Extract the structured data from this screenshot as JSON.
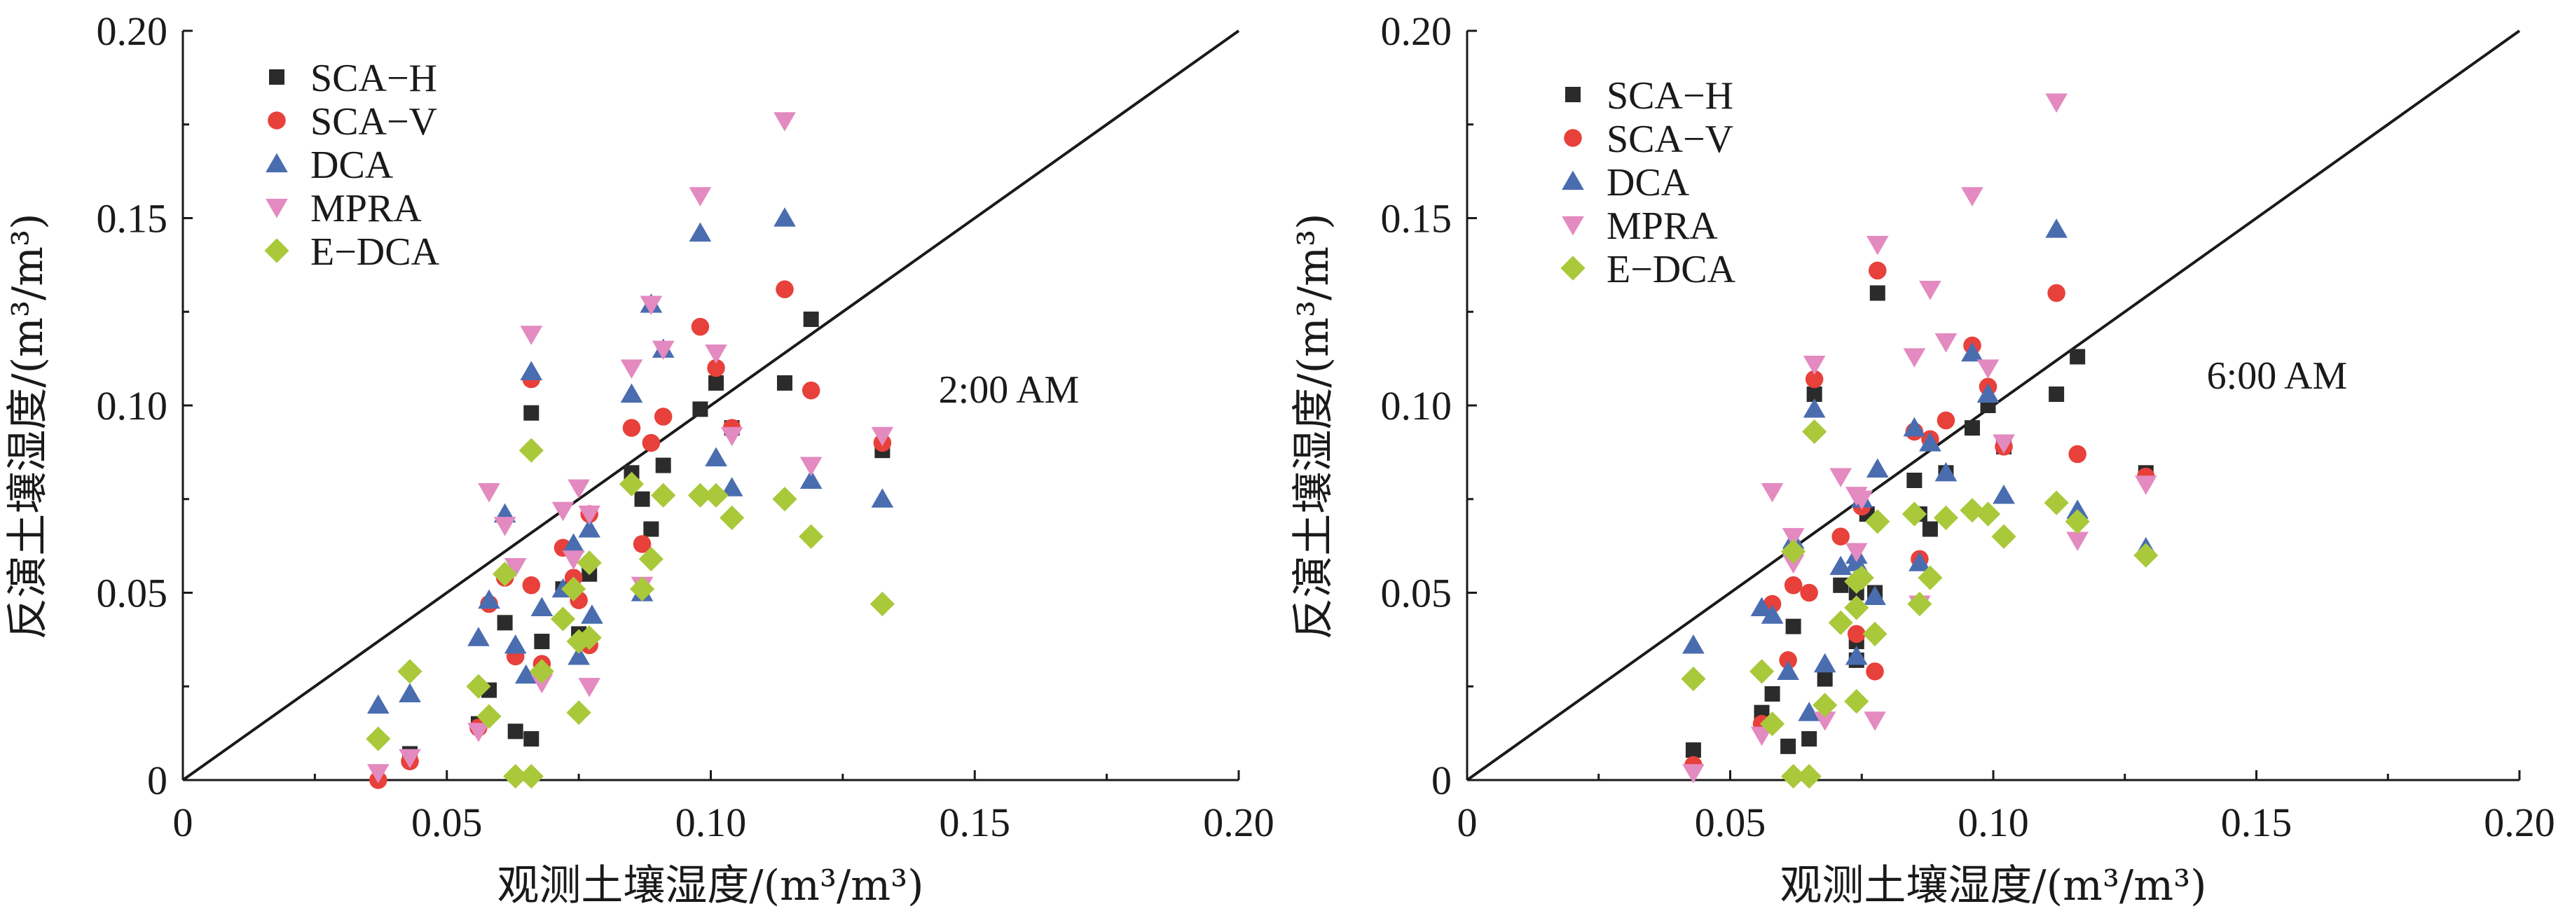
{
  "chart_data": [
    {
      "type": "scatter",
      "title": "",
      "annotation": "2:00 AM",
      "xlabel": "观测土壤湿度/(m³/m³)",
      "ylabel": "反演土壤湿度/(m³/m³)",
      "xlim": [
        0,
        0.2
      ],
      "ylim": [
        0,
        0.2
      ],
      "xticks": [
        "0",
        "0.05",
        "0.10",
        "0.15",
        "0.20"
      ],
      "yticks": [
        "0",
        "0.05",
        "0.10",
        "0.15",
        "0.20"
      ],
      "grid": false,
      "legend_position": "top-left",
      "reference_line": "1:1",
      "series": [
        {
          "name": "SCA−H",
          "marker": "square",
          "color": "#2b2b2b",
          "points": [
            [
              0.043,
              0.007
            ],
            [
              0.056,
              0.015
            ],
            [
              0.058,
              0.024
            ],
            [
              0.061,
              0.042
            ],
            [
              0.063,
              0.013
            ],
            [
              0.066,
              0.011
            ],
            [
              0.066,
              0.098
            ],
            [
              0.068,
              0.037
            ],
            [
              0.072,
              0.051
            ],
            [
              0.075,
              0.039
            ],
            [
              0.077,
              0.055
            ],
            [
              0.085,
              0.082
            ],
            [
              0.087,
              0.075
            ],
            [
              0.0887,
              0.067
            ],
            [
              0.091,
              0.084
            ],
            [
              0.098,
              0.099
            ],
            [
              0.101,
              0.106
            ],
            [
              0.104,
              0.094
            ],
            [
              0.114,
              0.106
            ],
            [
              0.119,
              0.123
            ],
            [
              0.1325,
              0.088
            ]
          ]
        },
        {
          "name": "SCA−V",
          "marker": "circle",
          "color": "#e8403a",
          "points": [
            [
              0.037,
              0.0
            ],
            [
              0.043,
              0.005
            ],
            [
              0.056,
              0.014
            ],
            [
              0.058,
              0.047
            ],
            [
              0.061,
              0.054
            ],
            [
              0.063,
              0.033
            ],
            [
              0.066,
              0.052
            ],
            [
              0.066,
              0.107
            ],
            [
              0.068,
              0.031
            ],
            [
              0.072,
              0.062
            ],
            [
              0.074,
              0.054
            ],
            [
              0.075,
              0.048
            ],
            [
              0.077,
              0.036
            ],
            [
              0.077,
              0.071
            ],
            [
              0.085,
              0.094
            ],
            [
              0.087,
              0.063
            ],
            [
              0.0887,
              0.09
            ],
            [
              0.091,
              0.097
            ],
            [
              0.098,
              0.121
            ],
            [
              0.101,
              0.11
            ],
            [
              0.104,
              0.094
            ],
            [
              0.114,
              0.131
            ],
            [
              0.119,
              0.104
            ],
            [
              0.1325,
              0.09
            ]
          ]
        },
        {
          "name": "DCA",
          "marker": "triangle-up",
          "color": "#4a6db0",
          "points": [
            [
              0.037,
              0.02
            ],
            [
              0.043,
              0.023
            ],
            [
              0.056,
              0.038
            ],
            [
              0.058,
              0.048
            ],
            [
              0.061,
              0.071
            ],
            [
              0.063,
              0.036
            ],
            [
              0.065,
              0.028
            ],
            [
              0.066,
              0.109
            ],
            [
              0.068,
              0.046
            ],
            [
              0.072,
              0.051
            ],
            [
              0.074,
              0.063
            ],
            [
              0.075,
              0.033
            ],
            [
              0.077,
              0.067
            ],
            [
              0.0775,
              0.044
            ],
            [
              0.085,
              0.103
            ],
            [
              0.087,
              0.05
            ],
            [
              0.0887,
              0.127
            ],
            [
              0.091,
              0.115
            ],
            [
              0.098,
              0.146
            ],
            [
              0.101,
              0.086
            ],
            [
              0.104,
              0.078
            ],
            [
              0.114,
              0.15
            ],
            [
              0.119,
              0.08
            ],
            [
              0.1325,
              0.075
            ]
          ]
        },
        {
          "name": "MPRA",
          "marker": "triangle-down",
          "color": "#e38ac0",
          "points": [
            [
              0.037,
              0.002
            ],
            [
              0.043,
              0.006
            ],
            [
              0.056,
              0.013
            ],
            [
              0.058,
              0.077
            ],
            [
              0.061,
              0.068
            ],
            [
              0.063,
              0.057
            ],
            [
              0.066,
              0.119
            ],
            [
              0.068,
              0.026
            ],
            [
              0.072,
              0.072
            ],
            [
              0.074,
              0.059
            ],
            [
              0.075,
              0.078
            ],
            [
              0.077,
              0.025
            ],
            [
              0.077,
              0.071
            ],
            [
              0.085,
              0.11
            ],
            [
              0.087,
              0.052
            ],
            [
              0.0887,
              0.127
            ],
            [
              0.091,
              0.115
            ],
            [
              0.098,
              0.156
            ],
            [
              0.101,
              0.114
            ],
            [
              0.104,
              0.092
            ],
            [
              0.114,
              0.176
            ],
            [
              0.119,
              0.084
            ],
            [
              0.1325,
              0.092
            ]
          ]
        },
        {
          "name": "E−DCA",
          "marker": "diamond",
          "color": "#a9c93a",
          "points": [
            [
              0.037,
              0.011
            ],
            [
              0.043,
              0.029
            ],
            [
              0.056,
              0.025
            ],
            [
              0.058,
              0.017
            ],
            [
              0.061,
              0.055
            ],
            [
              0.063,
              0.001
            ],
            [
              0.066,
              0.001
            ],
            [
              0.066,
              0.088
            ],
            [
              0.068,
              0.029
            ],
            [
              0.072,
              0.043
            ],
            [
              0.074,
              0.051
            ],
            [
              0.075,
              0.018
            ],
            [
              0.075,
              0.037
            ],
            [
              0.077,
              0.038
            ],
            [
              0.077,
              0.058
            ],
            [
              0.085,
              0.079
            ],
            [
              0.087,
              0.051
            ],
            [
              0.0887,
              0.059
            ],
            [
              0.091,
              0.076
            ],
            [
              0.098,
              0.076
            ],
            [
              0.101,
              0.076
            ],
            [
              0.104,
              0.07
            ],
            [
              0.114,
              0.075
            ],
            [
              0.119,
              0.065
            ],
            [
              0.1325,
              0.047
            ]
          ]
        }
      ]
    },
    {
      "type": "scatter",
      "title": "",
      "annotation": "6:00 AM",
      "xlabel": "观测土壤湿度/(m³/m³)",
      "ylabel": "反演土壤湿度/(m³/m³)",
      "xlim": [
        0,
        0.2
      ],
      "ylim": [
        0,
        0.2
      ],
      "xticks": [
        "0",
        "0.05",
        "0.10",
        "0.15",
        "0.20"
      ],
      "yticks": [
        "0",
        "0.05",
        "0.10",
        "0.15",
        "0.20"
      ],
      "grid": false,
      "legend_position": "top-left",
      "reference_line": "1:1",
      "series": [
        {
          "name": "SCA−H",
          "marker": "square",
          "color": "#2b2b2b",
          "points": [
            [
              0.043,
              0.008
            ],
            [
              0.056,
              0.018
            ],
            [
              0.058,
              0.023
            ],
            [
              0.061,
              0.009
            ],
            [
              0.062,
              0.041
            ],
            [
              0.065,
              0.011
            ],
            [
              0.066,
              0.103
            ],
            [
              0.068,
              0.027
            ],
            [
              0.071,
              0.052
            ],
            [
              0.074,
              0.032
            ],
            [
              0.074,
              0.037
            ],
            [
              0.074,
              0.05
            ],
            [
              0.076,
              0.071
            ],
            [
              0.0775,
              0.05
            ],
            [
              0.078,
              0.13
            ],
            [
              0.085,
              0.08
            ],
            [
              0.086,
              0.071
            ],
            [
              0.088,
              0.067
            ],
            [
              0.091,
              0.082
            ],
            [
              0.096,
              0.094
            ],
            [
              0.099,
              0.1
            ],
            [
              0.102,
              0.089
            ],
            [
              0.112,
              0.103
            ],
            [
              0.116,
              0.113
            ],
            [
              0.129,
              0.082
            ]
          ]
        },
        {
          "name": "SCA−V",
          "marker": "circle",
          "color": "#e8403a",
          "points": [
            [
              0.043,
              0.004
            ],
            [
              0.056,
              0.015
            ],
            [
              0.058,
              0.047
            ],
            [
              0.061,
              0.032
            ],
            [
              0.062,
              0.052
            ],
            [
              0.065,
              0.05
            ],
            [
              0.066,
              0.107
            ],
            [
              0.071,
              0.065
            ],
            [
              0.074,
              0.039
            ],
            [
              0.075,
              0.073
            ],
            [
              0.0775,
              0.029
            ],
            [
              0.078,
              0.136
            ],
            [
              0.085,
              0.093
            ],
            [
              0.086,
              0.059
            ],
            [
              0.088,
              0.091
            ],
            [
              0.091,
              0.096
            ],
            [
              0.096,
              0.116
            ],
            [
              0.099,
              0.105
            ],
            [
              0.102,
              0.089
            ],
            [
              0.112,
              0.13
            ],
            [
              0.116,
              0.087
            ],
            [
              0.129,
              0.081
            ]
          ]
        },
        {
          "name": "DCA",
          "marker": "triangle-up",
          "color": "#4a6db0",
          "points": [
            [
              0.043,
              0.036
            ],
            [
              0.056,
              0.046
            ],
            [
              0.058,
              0.044
            ],
            [
              0.061,
              0.029
            ],
            [
              0.062,
              0.064
            ],
            [
              0.065,
              0.018
            ],
            [
              0.066,
              0.099
            ],
            [
              0.068,
              0.031
            ],
            [
              0.071,
              0.057
            ],
            [
              0.074,
              0.033
            ],
            [
              0.074,
              0.058
            ],
            [
              0.074,
              0.06
            ],
            [
              0.075,
              0.075
            ],
            [
              0.0775,
              0.049
            ],
            [
              0.078,
              0.083
            ],
            [
              0.085,
              0.094
            ],
            [
              0.086,
              0.058
            ],
            [
              0.088,
              0.09
            ],
            [
              0.091,
              0.082
            ],
            [
              0.096,
              0.114
            ],
            [
              0.099,
              0.103
            ],
            [
              0.102,
              0.076
            ],
            [
              0.112,
              0.147
            ],
            [
              0.116,
              0.072
            ],
            [
              0.129,
              0.062
            ]
          ]
        },
        {
          "name": "MPRA",
          "marker": "triangle-down",
          "color": "#e38ac0",
          "points": [
            [
              0.043,
              0.002
            ],
            [
              0.056,
              0.012
            ],
            [
              0.058,
              0.077
            ],
            [
              0.062,
              0.058
            ],
            [
              0.062,
              0.065
            ],
            [
              0.066,
              0.111
            ],
            [
              0.068,
              0.016
            ],
            [
              0.071,
              0.081
            ],
            [
              0.074,
              0.061
            ],
            [
              0.074,
              0.076
            ],
            [
              0.075,
              0.075
            ],
            [
              0.0775,
              0.016
            ],
            [
              0.078,
              0.143
            ],
            [
              0.085,
              0.113
            ],
            [
              0.086,
              0.047
            ],
            [
              0.088,
              0.131
            ],
            [
              0.091,
              0.117
            ],
            [
              0.096,
              0.156
            ],
            [
              0.099,
              0.11
            ],
            [
              0.102,
              0.09
            ],
            [
              0.112,
              0.181
            ],
            [
              0.116,
              0.064
            ],
            [
              0.129,
              0.079
            ]
          ]
        },
        {
          "name": "E−DCA",
          "marker": "diamond",
          "color": "#a9c93a",
          "points": [
            [
              0.043,
              0.027
            ],
            [
              0.056,
              0.029
            ],
            [
              0.058,
              0.015
            ],
            [
              0.062,
              0.001
            ],
            [
              0.062,
              0.061
            ],
            [
              0.065,
              0.001
            ],
            [
              0.066,
              0.093
            ],
            [
              0.068,
              0.02
            ],
            [
              0.071,
              0.042
            ],
            [
              0.074,
              0.021
            ],
            [
              0.074,
              0.046
            ],
            [
              0.074,
              0.053
            ],
            [
              0.075,
              0.054
            ],
            [
              0.0775,
              0.039
            ],
            [
              0.078,
              0.069
            ],
            [
              0.085,
              0.071
            ],
            [
              0.086,
              0.047
            ],
            [
              0.088,
              0.054
            ],
            [
              0.091,
              0.07
            ],
            [
              0.096,
              0.072
            ],
            [
              0.099,
              0.071
            ],
            [
              0.102,
              0.065
            ],
            [
              0.112,
              0.074
            ],
            [
              0.116,
              0.069
            ],
            [
              0.129,
              0.06
            ]
          ]
        }
      ]
    }
  ]
}
